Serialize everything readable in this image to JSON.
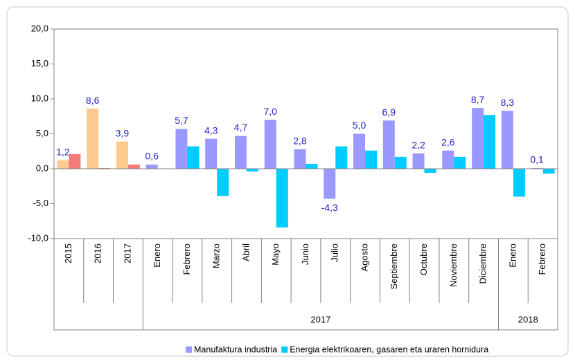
{
  "chart_data": {
    "type": "bar",
    "categories": [
      "2015",
      "2016",
      "2017",
      "Enero",
      "Febrero",
      "Marzo",
      "Abril",
      "Mayo",
      "Junio",
      "Julio",
      "Agosto",
      "Septiembre",
      "Octubre",
      "Noviembre",
      "Diciembre",
      "Enero",
      "Febrero"
    ],
    "groups": [
      {
        "label": "2017",
        "from": 3,
        "to": 14
      },
      {
        "label": "2018",
        "from": 15,
        "to": 16
      }
    ],
    "series": [
      {
        "name": "Manufaktura industria",
        "color": "#9999ff",
        "colors": [
          "#fcc98f",
          "#fcc98f",
          "#fcc98f",
          "#9999ff",
          "#9999ff",
          "#9999ff",
          "#9999ff",
          "#9999ff",
          "#9999ff",
          "#9999ff",
          "#9999ff",
          "#9999ff",
          "#9999ff",
          "#9999ff",
          "#9999ff",
          "#9999ff",
          "#9999ff"
        ],
        "values": [
          1.2,
          8.6,
          3.9,
          0.6,
          5.7,
          4.3,
          4.7,
          7.0,
          2.8,
          -4.3,
          5.0,
          6.9,
          2.2,
          2.6,
          8.7,
          8.3,
          0.1
        ],
        "value_labels": [
          "1,2",
          "8,6",
          "3,9",
          "0,6",
          "5,7",
          "4,3",
          "4,7",
          "7,0",
          "2,8",
          "-4,3",
          "5,0",
          "6,9",
          "2,2",
          "2,6",
          "8,7",
          "8,3",
          "0,1"
        ]
      },
      {
        "name": "Energia elektrikoaren, gasaren eta uraren hornidura",
        "color": "#00ccff",
        "colors": [
          "#f47b7b",
          "#f47b7b",
          "#f47b7b",
          "#00ccff",
          "#00ccff",
          "#00ccff",
          "#00ccff",
          "#00ccff",
          "#00ccff",
          "#00ccff",
          "#00ccff",
          "#00ccff",
          "#00ccff",
          "#00ccff",
          "#00ccff",
          "#00ccff",
          "#00ccff"
        ],
        "values": [
          2.1,
          0.1,
          0.6,
          0.0,
          3.2,
          -3.9,
          -0.4,
          -8.4,
          0.7,
          3.2,
          2.6,
          1.7,
          -0.6,
          1.7,
          7.7,
          -4.0,
          -0.7
        ]
      }
    ],
    "ylim": [
      -10,
      20
    ],
    "yticks": [
      {
        "value": -10,
        "label": "-10,0"
      },
      {
        "value": -5,
        "label": "-5,0"
      },
      {
        "value": 0,
        "label": "0,0"
      },
      {
        "value": 5,
        "label": "5,0"
      },
      {
        "value": 10,
        "label": "10,0"
      },
      {
        "value": 15,
        "label": "15,0"
      },
      {
        "value": 20,
        "label": "20,0"
      }
    ],
    "legend": "bottom"
  }
}
